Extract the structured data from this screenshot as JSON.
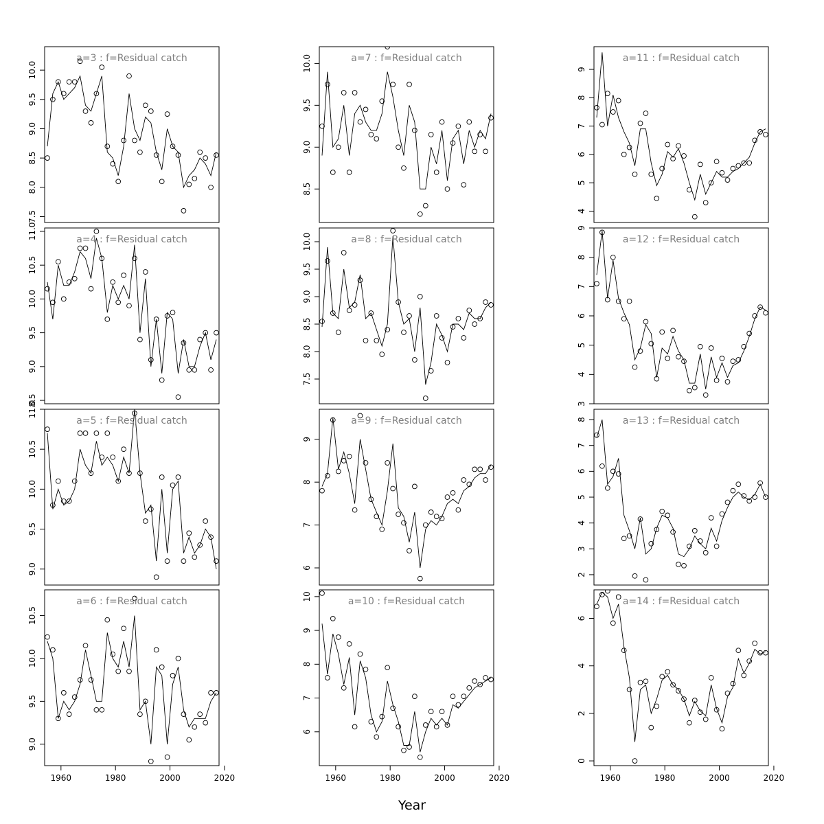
{
  "figure": {
    "xlabel": "Year",
    "xticks": [
      "1960",
      "1980",
      "2000",
      "2020"
    ]
  },
  "chart_data": [
    {
      "type": "line",
      "title": "a=3 : f=Residual catch",
      "xlim": [
        1954,
        2018
      ],
      "ylim": [
        7.4,
        10.4
      ],
      "ticks": [
        "7.5",
        "8.0",
        "8.5",
        "9.0",
        "9.5",
        "10.0"
      ],
      "x": [
        1955,
        1957,
        1959,
        1961,
        1963,
        1965,
        1967,
        1969,
        1971,
        1973,
        1975,
        1977,
        1979,
        1981,
        1983,
        1985,
        1987,
        1989,
        1991,
        1993,
        1995,
        1997,
        1999,
        2001,
        2003,
        2005,
        2007,
        2009,
        2011,
        2013,
        2015,
        2017
      ],
      "points": [
        8.5,
        9.5,
        9.8,
        9.6,
        9.8,
        9.8,
        10.15,
        9.3,
        9.1,
        9.6,
        10.05,
        8.7,
        8.4,
        8.1,
        8.8,
        9.9,
        8.8,
        8.6,
        9.4,
        9.3,
        8.55,
        8.1,
        9.25,
        8.7,
        8.55,
        7.6,
        8.05,
        8.15,
        8.6,
        8.5,
        8.0,
        8.55
      ],
      "fit": [
        8.7,
        9.6,
        9.8,
        9.5,
        9.6,
        9.7,
        9.9,
        9.4,
        9.3,
        9.6,
        9.9,
        8.6,
        8.5,
        8.2,
        8.7,
        9.6,
        9.0,
        8.8,
        9.2,
        9.1,
        8.6,
        8.3,
        9.0,
        8.7,
        8.6,
        8.0,
        8.2,
        8.3,
        8.5,
        8.4,
        8.2,
        8.6
      ]
    },
    {
      "type": "line",
      "title": "a=7 : f=Residual catch",
      "xlim": [
        1954,
        2018
      ],
      "ylim": [
        8.1,
        10.2
      ],
      "ticks": [
        "8.5",
        "9.0",
        "9.5",
        "10.0"
      ],
      "x": [
        1955,
        1957,
        1959,
        1961,
        1963,
        1965,
        1967,
        1969,
        1971,
        1973,
        1975,
        1977,
        1979,
        1981,
        1983,
        1985,
        1987,
        1989,
        1991,
        1993,
        1995,
        1997,
        1999,
        2001,
        2003,
        2005,
        2007,
        2009,
        2011,
        2013,
        2015,
        2017
      ],
      "points": [
        9.25,
        9.75,
        8.7,
        9.0,
        9.65,
        8.7,
        9.65,
        9.3,
        9.45,
        9.15,
        9.1,
        9.55,
        10.2,
        9.75,
        9.0,
        8.75,
        9.75,
        9.2,
        8.2,
        8.3,
        9.15,
        8.7,
        9.3,
        8.5,
        9.05,
        9.25,
        8.55,
        9.3,
        8.95,
        9.15,
        8.95,
        9.35
      ],
      "fit": [
        8.9,
        9.9,
        9.0,
        9.1,
        9.5,
        8.9,
        9.4,
        9.5,
        9.3,
        9.2,
        9.2,
        9.4,
        9.9,
        9.6,
        9.2,
        8.9,
        9.5,
        9.3,
        8.5,
        8.5,
        9.0,
        8.8,
        9.2,
        8.6,
        9.1,
        9.2,
        8.8,
        9.2,
        9.0,
        9.2,
        9.1,
        9.4
      ]
    },
    {
      "type": "line",
      "title": "a=11 : f=Residual catch",
      "xlim": [
        1954,
        2018
      ],
      "ylim": [
        3.6,
        9.8
      ],
      "ticks": [
        "4",
        "5",
        "6",
        "7",
        "8",
        "9"
      ],
      "x": [
        1955,
        1957,
        1959,
        1961,
        1963,
        1965,
        1967,
        1969,
        1971,
        1973,
        1975,
        1977,
        1979,
        1981,
        1983,
        1985,
        1987,
        1989,
        1991,
        1993,
        1995,
        1997,
        1999,
        2001,
        2003,
        2005,
        2007,
        2009,
        2011,
        2013,
        2015,
        2017
      ],
      "points": [
        7.65,
        7.05,
        8.15,
        7.5,
        7.9,
        6.0,
        6.25,
        5.3,
        7.1,
        7.45,
        5.3,
        4.45,
        5.5,
        6.35,
        5.85,
        6.3,
        5.95,
        4.75,
        3.8,
        5.65,
        4.3,
        5.0,
        5.75,
        5.35,
        5.1,
        5.5,
        5.6,
        5.7,
        5.7,
        6.5,
        6.8,
        6.7
      ],
      "fit": [
        7.3,
        9.6,
        7.0,
        8.1,
        7.3,
        6.8,
        6.4,
        5.6,
        6.9,
        6.9,
        5.7,
        4.9,
        5.3,
        6.1,
        5.9,
        6.2,
        5.7,
        5.0,
        4.4,
        5.3,
        4.6,
        5.0,
        5.4,
        5.2,
        5.2,
        5.4,
        5.5,
        5.7,
        5.9,
        6.4,
        6.8,
        6.9
      ]
    },
    {
      "type": "line",
      "title": "a=4 : f=Residual catch",
      "xlim": [
        1954,
        2018
      ],
      "ylim": [
        8.45,
        11.05
      ],
      "ticks": [
        "8.5",
        "9.0",
        "9.5",
        "10.0",
        "10.5",
        "11.0"
      ],
      "x": [
        1955,
        1957,
        1959,
        1961,
        1963,
        1965,
        1967,
        1969,
        1971,
        1973,
        1975,
        1977,
        1979,
        1981,
        1983,
        1985,
        1987,
        1989,
        1991,
        1993,
        1995,
        1997,
        1999,
        2001,
        2003,
        2005,
        2007,
        2009,
        2011,
        2013,
        2015,
        2017
      ],
      "points": [
        10.15,
        9.95,
        10.55,
        10.0,
        10.25,
        10.3,
        10.75,
        10.75,
        10.15,
        11.0,
        10.6,
        9.7,
        10.25,
        9.95,
        10.35,
        9.9,
        10.6,
        9.4,
        10.4,
        9.1,
        9.7,
        8.8,
        9.75,
        9.8,
        8.55,
        9.35,
        8.95,
        8.95,
        9.4,
        9.5,
        8.95,
        9.5
      ],
      "fit": [
        10.25,
        9.7,
        10.5,
        10.2,
        10.2,
        10.4,
        10.7,
        10.6,
        10.3,
        10.9,
        10.6,
        9.8,
        10.2,
        10.0,
        10.2,
        10.0,
        10.8,
        9.5,
        10.3,
        9.0,
        9.7,
        8.9,
        9.8,
        9.7,
        8.9,
        9.4,
        9.0,
        9.0,
        9.3,
        9.5,
        9.1,
        9.4
      ]
    },
    {
      "type": "line",
      "title": "a=8 : f=Residual catch",
      "xlim": [
        1954,
        2018
      ],
      "ylim": [
        7.05,
        10.25
      ],
      "ticks": [
        "7.5",
        "8.0",
        "8.5",
        "9.0",
        "9.5",
        "10.0"
      ],
      "x": [
        1955,
        1957,
        1959,
        1961,
        1963,
        1965,
        1967,
        1969,
        1971,
        1973,
        1975,
        1977,
        1979,
        1981,
        1983,
        1985,
        1987,
        1989,
        1991,
        1993,
        1995,
        1997,
        1999,
        2001,
        2003,
        2005,
        2007,
        2009,
        2011,
        2013,
        2015,
        2017
      ],
      "points": [
        8.55,
        9.65,
        8.7,
        8.35,
        9.8,
        8.75,
        8.85,
        9.3,
        8.2,
        8.7,
        8.2,
        7.95,
        8.4,
        10.2,
        8.9,
        8.35,
        8.65,
        7.85,
        9.0,
        7.15,
        7.65,
        8.65,
        8.25,
        7.8,
        8.45,
        8.6,
        8.25,
        8.75,
        8.5,
        8.6,
        8.9,
        8.85
      ],
      "fit": [
        8.45,
        9.9,
        8.7,
        8.6,
        9.5,
        8.8,
        8.9,
        9.4,
        8.6,
        8.7,
        8.4,
        8.1,
        8.5,
        10.1,
        8.9,
        8.5,
        8.6,
        8.0,
        8.8,
        7.4,
        7.8,
        8.5,
        8.3,
        8.0,
        8.5,
        8.5,
        8.4,
        8.7,
        8.6,
        8.6,
        8.8,
        8.9
      ]
    },
    {
      "type": "line",
      "title": "a=12 : f=Residual catch",
      "xlim": [
        1954,
        2018
      ],
      "ylim": [
        3.0,
        9.0
      ],
      "ticks": [
        "3",
        "4",
        "5",
        "6",
        "7",
        "8",
        "9"
      ],
      "x": [
        1955,
        1957,
        1959,
        1961,
        1963,
        1965,
        1967,
        1969,
        1971,
        1973,
        1975,
        1977,
        1979,
        1981,
        1983,
        1985,
        1987,
        1989,
        1991,
        1993,
        1995,
        1997,
        1999,
        2001,
        2003,
        2005,
        2007,
        2009,
        2011,
        2013,
        2015,
        2017
      ],
      "points": [
        7.1,
        8.85,
        6.55,
        8.0,
        6.5,
        5.9,
        6.5,
        4.25,
        4.8,
        5.8,
        5.05,
        3.85,
        5.45,
        4.55,
        5.5,
        4.6,
        4.45,
        3.45,
        3.55,
        4.95,
        3.3,
        4.9,
        3.8,
        4.55,
        3.75,
        4.45,
        4.5,
        4.95,
        5.4,
        6.0,
        6.3,
        6.1
      ],
      "fit": [
        7.4,
        8.9,
        6.6,
        7.9,
        6.6,
        6.1,
        5.7,
        4.5,
        4.9,
        5.7,
        5.4,
        3.9,
        4.9,
        4.7,
        5.3,
        4.8,
        4.5,
        3.7,
        3.7,
        4.7,
        3.5,
        4.6,
        3.9,
        4.4,
        3.9,
        4.3,
        4.4,
        4.8,
        5.3,
        5.9,
        6.3,
        6.2
      ]
    },
    {
      "type": "line",
      "title": "a=5 : f=Residual catch",
      "xlim": [
        1954,
        2018
      ],
      "ylim": [
        8.8,
        11.0
      ],
      "ticks": [
        "9.0",
        "9.5",
        "10.0",
        "10.5",
        "11.0"
      ],
      "x": [
        1955,
        1957,
        1959,
        1961,
        1963,
        1965,
        1967,
        1969,
        1971,
        1973,
        1975,
        1977,
        1979,
        1981,
        1983,
        1985,
        1987,
        1989,
        1991,
        1993,
        1995,
        1997,
        1999,
        2001,
        2003,
        2005,
        2007,
        2009,
        2011,
        2013,
        2015,
        2017
      ],
      "points": [
        10.75,
        9.8,
        10.1,
        9.85,
        9.85,
        10.1,
        10.7,
        10.7,
        10.2,
        10.7,
        10.4,
        10.7,
        10.4,
        10.1,
        10.5,
        10.2,
        10.95,
        10.2,
        9.6,
        9.75,
        8.9,
        10.15,
        9.1,
        10.05,
        10.15,
        9.1,
        9.45,
        9.15,
        9.3,
        9.6,
        9.4,
        9.1
      ],
      "fit": [
        10.7,
        9.75,
        10.0,
        9.8,
        9.85,
        10.0,
        10.5,
        10.3,
        10.2,
        10.6,
        10.3,
        10.4,
        10.3,
        10.1,
        10.4,
        10.2,
        11.0,
        10.2,
        9.7,
        9.8,
        9.1,
        10.0,
        9.2,
        10.0,
        10.1,
        9.2,
        9.4,
        9.2,
        9.3,
        9.5,
        9.4,
        9.0
      ]
    },
    {
      "type": "line",
      "title": "a=9 : f=Residual catch",
      "xlim": [
        1954,
        2018
      ],
      "ylim": [
        5.6,
        9.7
      ],
      "ticks": [
        "6",
        "7",
        "8",
        "9"
      ],
      "x": [
        1955,
        1957,
        1959,
        1961,
        1963,
        1965,
        1967,
        1969,
        1971,
        1973,
        1975,
        1977,
        1979,
        1981,
        1983,
        1985,
        1987,
        1989,
        1991,
        1993,
        1995,
        1997,
        1999,
        2001,
        2003,
        2005,
        2007,
        2009,
        2011,
        2013,
        2015,
        2017
      ],
      "points": [
        7.8,
        8.15,
        9.45,
        8.25,
        8.5,
        8.6,
        7.35,
        9.55,
        8.45,
        7.6,
        7.2,
        6.9,
        8.45,
        7.85,
        7.25,
        7.05,
        6.4,
        7.9,
        5.75,
        7.0,
        7.3,
        7.2,
        7.15,
        7.65,
        7.75,
        7.35,
        8.05,
        7.95,
        8.3,
        8.3,
        8.05,
        8.35
      ],
      "fit": [
        7.9,
        8.2,
        9.5,
        8.3,
        8.7,
        8.2,
        7.5,
        9.0,
        8.3,
        7.6,
        7.3,
        7.0,
        7.8,
        8.9,
        7.4,
        7.2,
        6.6,
        7.3,
        6.0,
        6.9,
        7.1,
        7.0,
        7.2,
        7.5,
        7.6,
        7.5,
        7.8,
        7.9,
        8.1,
        8.2,
        8.2,
        8.4
      ]
    },
    {
      "type": "line",
      "title": "a=13 : f=Residual catch",
      "xlim": [
        1954,
        2018
      ],
      "ylim": [
        1.6,
        8.4
      ],
      "ticks": [
        "2",
        "3",
        "4",
        "5",
        "6",
        "7",
        "8"
      ],
      "x": [
        1955,
        1957,
        1959,
        1961,
        1963,
        1965,
        1967,
        1969,
        1971,
        1973,
        1975,
        1977,
        1979,
        1981,
        1983,
        1985,
        1987,
        1989,
        1991,
        1993,
        1995,
        1997,
        1999,
        2001,
        2003,
        2005,
        2007,
        2009,
        2011,
        2013,
        2015,
        2017
      ],
      "points": [
        7.4,
        6.2,
        5.35,
        6.0,
        5.9,
        3.4,
        3.5,
        1.95,
        4.15,
        1.8,
        3.2,
        3.75,
        4.45,
        4.3,
        3.65,
        2.4,
        2.35,
        3.1,
        3.7,
        3.3,
        2.85,
        4.2,
        3.1,
        4.35,
        4.8,
        5.25,
        5.5,
        5.05,
        4.85,
        5.0,
        5.55,
        5.0
      ],
      "fit": [
        7.3,
        8.0,
        5.5,
        5.8,
        6.5,
        4.3,
        3.7,
        3.0,
        4.2,
        2.8,
        3.0,
        3.8,
        4.3,
        4.2,
        3.8,
        2.8,
        2.7,
        3.0,
        3.5,
        3.2,
        3.0,
        3.8,
        3.3,
        4.1,
        4.6,
        5.0,
        5.2,
        5.0,
        4.9,
        5.1,
        5.5,
        5.0
      ]
    },
    {
      "type": "line",
      "title": "a=6 : f=Residual catch",
      "xlim": [
        1954,
        2018
      ],
      "ylim": [
        8.75,
        10.8
      ],
      "ticks": [
        "9.0",
        "9.5",
        "10.0",
        "10.5"
      ],
      "x": [
        1955,
        1957,
        1959,
        1961,
        1963,
        1965,
        1967,
        1969,
        1971,
        1973,
        1975,
        1977,
        1979,
        1981,
        1983,
        1985,
        1987,
        1989,
        1991,
        1993,
        1995,
        1997,
        1999,
        2001,
        2003,
        2005,
        2007,
        2009,
        2011,
        2013,
        2015,
        2017
      ],
      "points": [
        10.25,
        10.1,
        9.3,
        9.6,
        9.35,
        9.55,
        9.75,
        10.15,
        9.75,
        9.4,
        9.4,
        10.45,
        10.05,
        9.85,
        10.35,
        9.85,
        10.7,
        9.35,
        9.5,
        8.8,
        10.1,
        9.9,
        8.85,
        9.8,
        10.0,
        9.35,
        9.05,
        9.2,
        9.35,
        9.25,
        9.6,
        9.6
      ],
      "fit": [
        10.2,
        10.0,
        9.3,
        9.5,
        9.4,
        9.5,
        9.7,
        10.1,
        9.8,
        9.5,
        9.5,
        10.3,
        10.0,
        9.9,
        10.2,
        9.9,
        10.5,
        9.4,
        9.5,
        9.0,
        9.9,
        9.8,
        9.0,
        9.7,
        9.9,
        9.4,
        9.2,
        9.3,
        9.3,
        9.3,
        9.5,
        9.6
      ]
    },
    {
      "type": "line",
      "title": "a=10 : f=Residual catch",
      "xlim": [
        1954,
        2018
      ],
      "ylim": [
        5.0,
        10.2
      ],
      "ticks": [
        "6",
        "7",
        "8",
        "9",
        "10"
      ],
      "x": [
        1955,
        1957,
        1959,
        1961,
        1963,
        1965,
        1967,
        1969,
        1971,
        1973,
        1975,
        1977,
        1979,
        1981,
        1983,
        1985,
        1987,
        1989,
        1991,
        1993,
        1995,
        1997,
        1999,
        2001,
        2003,
        2005,
        2007,
        2009,
        2011,
        2013,
        2015,
        2017
      ],
      "points": [
        10.1,
        7.6,
        9.35,
        8.8,
        7.3,
        8.6,
        6.15,
        8.3,
        7.85,
        6.3,
        5.85,
        6.45,
        7.9,
        6.7,
        6.15,
        5.45,
        5.55,
        7.05,
        5.25,
        6.2,
        6.6,
        6.15,
        6.6,
        6.2,
        7.05,
        6.8,
        7.05,
        7.3,
        7.5,
        7.4,
        7.6,
        7.55
      ],
      "fit": [
        9.2,
        7.7,
        8.9,
        8.3,
        7.4,
        8.2,
        6.5,
        8.1,
        7.6,
        6.5,
        6.0,
        6.3,
        7.5,
        6.8,
        6.3,
        5.6,
        5.6,
        6.6,
        5.4,
        6.0,
        6.4,
        6.2,
        6.4,
        6.2,
        6.8,
        6.7,
        6.9,
        7.1,
        7.3,
        7.4,
        7.5,
        7.6
      ]
    },
    {
      "type": "line",
      "title": "a=14 : f=Residual catch",
      "xlim": [
        1954,
        2018
      ],
      "ylim": [
        -0.2,
        7.2
      ],
      "ticks": [
        "0",
        "2",
        "4",
        "6"
      ],
      "x": [
        1955,
        1957,
        1959,
        1961,
        1963,
        1965,
        1967,
        1969,
        1971,
        1973,
        1975,
        1977,
        1979,
        1981,
        1983,
        1985,
        1987,
        1989,
        1991,
        1993,
        1995,
        1997,
        1999,
        2001,
        2003,
        2005,
        2007,
        2009,
        2011,
        2013,
        2015,
        2017
      ],
      "points": [
        6.5,
        7.0,
        7.15,
        5.8,
        6.9,
        4.65,
        3.0,
        0.0,
        3.3,
        3.35,
        1.4,
        2.3,
        3.55,
        3.75,
        3.2,
        2.95,
        2.6,
        1.6,
        2.55,
        2.05,
        1.75,
        3.5,
        2.15,
        1.35,
        2.85,
        3.25,
        4.65,
        3.6,
        4.2,
        4.95,
        4.55,
        4.55
      ],
      "fit": [
        6.6,
        7.1,
        6.9,
        6.0,
        6.6,
        4.8,
        3.5,
        0.8,
        3.0,
        3.2,
        2.0,
        2.6,
        3.4,
        3.6,
        3.2,
        3.0,
        2.6,
        1.9,
        2.5,
        2.1,
        1.9,
        3.2,
        2.2,
        1.6,
        2.7,
        3.1,
        4.3,
        3.7,
        4.1,
        4.7,
        4.5,
        4.6
      ]
    }
  ]
}
